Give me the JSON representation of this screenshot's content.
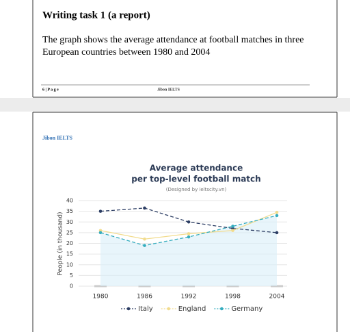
{
  "page_top": {
    "heading": "Writing task 1 (a report)",
    "paragraph": [
      "The graph shows the average attendance at football matches in three",
      "European countries between 1980 and 2004"
    ],
    "footer_page": "6 | P a g e",
    "footer_brand": "Jibon IELTS"
  },
  "page_bottom": {
    "brand": "Jibon IELTS"
  },
  "chart_data": {
    "type": "line",
    "title": "Average attendance",
    "subtitle": "per top-level football match",
    "note": "(Designed by ieltscity.vn)",
    "y_label": "People (in thousand)",
    "x": [
      1980,
      1986,
      1992,
      1998,
      2004
    ],
    "xlim": [
      1980,
      2004
    ],
    "xticks": [
      1980,
      1986,
      1992,
      1998,
      2004
    ],
    "ylim": [
      0,
      40
    ],
    "yticks": [
      0,
      5,
      10,
      15,
      20,
      25,
      30,
      35,
      40
    ],
    "grid": true,
    "series": [
      {
        "name": "Italy",
        "color": "#2d3e64",
        "dashed": true,
        "values": [
          35,
          36.5,
          30,
          27,
          25
        ]
      },
      {
        "name": "England",
        "color": "#f2dc8e",
        "dashed": false,
        "values": [
          26,
          22,
          24.5,
          26,
          34.5
        ]
      },
      {
        "name": "Germany",
        "color": "#36adbf",
        "dashed": true,
        "values": [
          25,
          19,
          23,
          28,
          33
        ]
      }
    ]
  }
}
